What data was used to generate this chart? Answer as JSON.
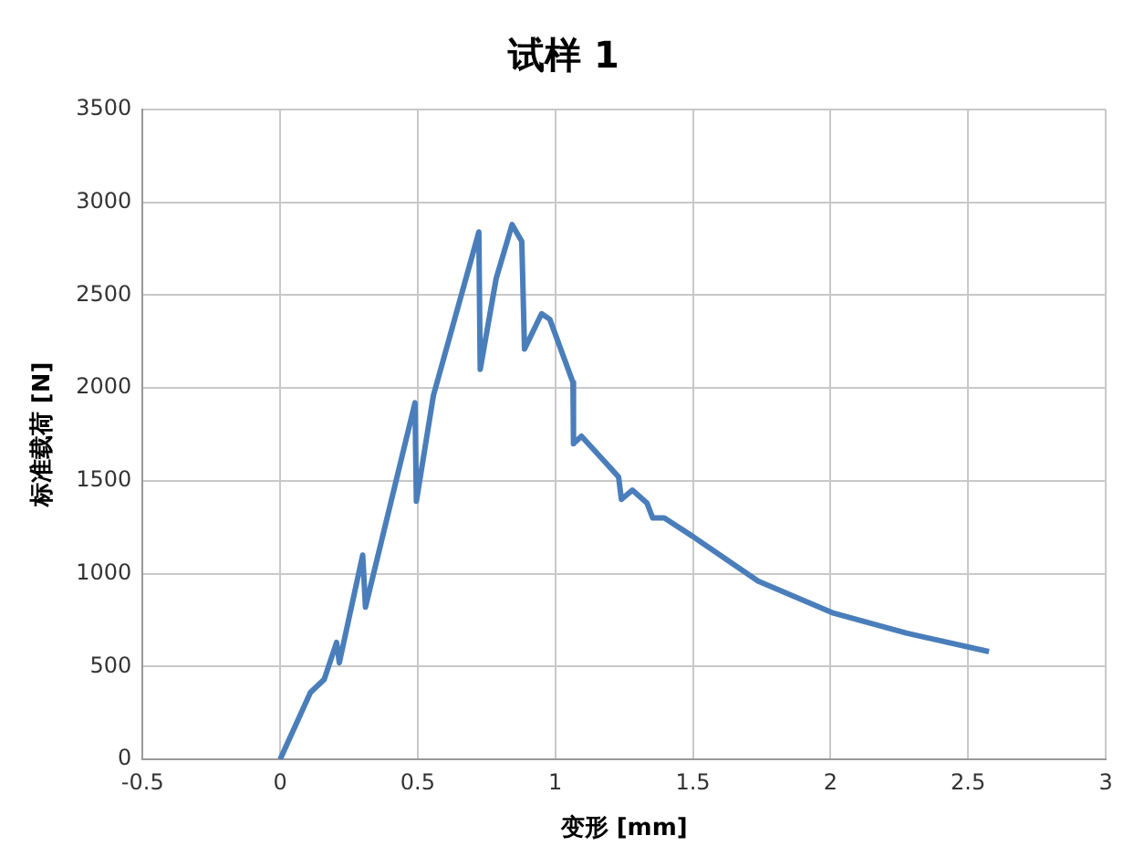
{
  "chart_data": {
    "type": "line",
    "title": "试样 1",
    "xlabel": "变形 [mm]",
    "ylabel": "标准载荷 [N]",
    "xlim": [
      -0.5,
      3
    ],
    "xticks": [
      -0.5,
      0,
      0.5,
      1,
      1.5,
      2,
      2.5,
      3
    ],
    "ylim": [
      0,
      3500
    ],
    "yticks": [
      0,
      500,
      1000,
      1500,
      2000,
      2500,
      3000,
      3500
    ],
    "grid": true,
    "legend": false,
    "series": [
      {
        "color": "#4a7ebb",
        "x": [
          0,
          0.11,
          0.16,
          0.205,
          0.215,
          0.3,
          0.31,
          0.49,
          0.495,
          0.557,
          0.722,
          0.727,
          0.785,
          0.843,
          0.878,
          0.888,
          0.95,
          0.98,
          1.064,
          1.066,
          1.095,
          1.2,
          1.23,
          1.24,
          1.28,
          1.333,
          1.354,
          1.396,
          1.5,
          1.737,
          2.006,
          2.275,
          2.576
        ],
        "values": [
          0,
          360,
          430,
          630,
          520,
          1100,
          820,
          1920,
          1390,
          1960,
          2840,
          2100,
          2590,
          2880,
          2790,
          2210,
          2400,
          2370,
          2030,
          1700,
          1740,
          1570,
          1520,
          1400,
          1450,
          1380,
          1300,
          1300,
          1200,
          960,
          790,
          680,
          580
        ]
      }
    ]
  }
}
